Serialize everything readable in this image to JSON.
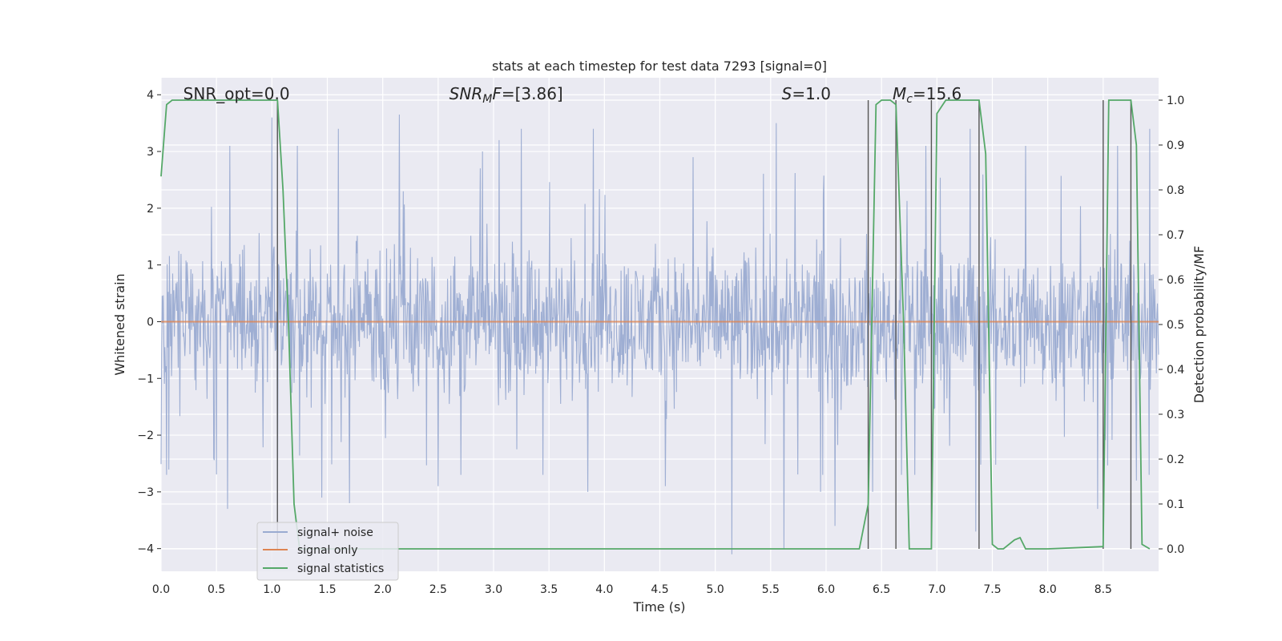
{
  "chart_data": {
    "type": "line",
    "title": "stats at each timestep for test data 7293 [signal=0]",
    "xlabel": "Time (s)",
    "ylabel_left": "Whitened strain",
    "ylabel_right": "Detection probability/MF",
    "xlim": [
      0.0,
      9.0
    ],
    "ylim_left": [
      -4.4,
      4.3
    ],
    "ylim_right": [
      -0.05,
      1.05
    ],
    "x_ticks": [
      "0.0",
      "0.5",
      "1.0",
      "1.5",
      "2.0",
      "2.5",
      "3.0",
      "3.5",
      "4.0",
      "4.5",
      "5.0",
      "5.5",
      "6.0",
      "6.5",
      "7.0",
      "7.5",
      "8.0",
      "8.5"
    ],
    "x_tick_values": [
      0.0,
      0.5,
      1.0,
      1.5,
      2.0,
      2.5,
      3.0,
      3.5,
      4.0,
      4.5,
      5.0,
      5.5,
      6.0,
      6.5,
      7.0,
      7.5,
      8.0,
      8.5
    ],
    "y_ticks_left": [
      "−4",
      "−3",
      "−2",
      "−1",
      "0",
      "1",
      "2",
      "3",
      "4"
    ],
    "y_tick_values_left": [
      -4,
      -3,
      -2,
      -1,
      0,
      1,
      2,
      3,
      4
    ],
    "y_ticks_right": [
      "0.0",
      "0.1",
      "0.2",
      "0.3",
      "0.4",
      "0.5",
      "0.6",
      "0.7",
      "0.8",
      "0.9",
      "1.0"
    ],
    "y_tick_values_right": [
      0.0,
      0.1,
      0.2,
      0.3,
      0.4,
      0.5,
      0.6,
      0.7,
      0.8,
      0.9,
      1.0
    ],
    "annotations": [
      {
        "text": "SNR_opt=0.0",
        "x": 0.2
      },
      {
        "text": "SNR",
        "sub": "M",
        "suffix": "F=[3.86]",
        "x": 2.6,
        "italic": true
      },
      {
        "text": "S",
        "suffix": "=1.0",
        "x": 5.6,
        "italic": true
      },
      {
        "text": "M",
        "sub": "c",
        "suffix": "=15.6",
        "x": 6.6,
        "italic": true
      }
    ],
    "vertical_lines_x": [
      1.05,
      6.38,
      6.63,
      6.95,
      7.38,
      8.5,
      8.75
    ],
    "series": [
      {
        "name": "signal+ noise",
        "color": "#9aabd1",
        "axis": "left",
        "envelope_note": "dense noise trace roughly within -2 and 2",
        "upper_spikes": [
          [
            0.62,
            3.1
          ],
          [
            1.0,
            3.6
          ],
          [
            1.23,
            3.1
          ],
          [
            1.6,
            3.4
          ],
          [
            2.15,
            3.65
          ],
          [
            2.9,
            3.0
          ],
          [
            3.05,
            3.2
          ],
          [
            3.25,
            3.4
          ],
          [
            3.9,
            3.4
          ],
          [
            4.8,
            2.9
          ],
          [
            5.55,
            3.5
          ],
          [
            6.08,
            3.9
          ],
          [
            6.9,
            3.1
          ],
          [
            7.3,
            3.4
          ],
          [
            7.8,
            3.1
          ],
          [
            8.63,
            3.1
          ],
          [
            8.92,
            3.4
          ]
        ],
        "lower_spikes": [
          [
            0.05,
            -2.7
          ],
          [
            0.6,
            -3.3
          ],
          [
            1.05,
            -3.2
          ],
          [
            1.45,
            -3.1
          ],
          [
            1.7,
            -3.2
          ],
          [
            2.5,
            -2.9
          ],
          [
            3.85,
            -3.0
          ],
          [
            4.55,
            -2.9
          ],
          [
            5.15,
            -4.1
          ],
          [
            5.62,
            -4.0
          ],
          [
            5.95,
            -3.0
          ],
          [
            6.08,
            -3.6
          ],
          [
            6.42,
            -3.0
          ],
          [
            7.35,
            -3.7
          ],
          [
            8.45,
            -3.3
          ],
          [
            8.8,
            -2.8
          ]
        ]
      },
      {
        "name": "signal only",
        "color": "#dd8452",
        "axis": "left",
        "x": [
          0.0,
          9.0
        ],
        "y": [
          0.0,
          0.0
        ]
      },
      {
        "name": "signal statistics",
        "color": "#55a868",
        "axis": "right",
        "x": [
          0.0,
          0.05,
          0.1,
          0.2,
          1.0,
          1.05,
          1.1,
          1.15,
          1.2,
          1.25,
          6.3,
          6.38,
          6.45,
          6.5,
          6.58,
          6.63,
          6.7,
          6.75,
          6.95,
          7.0,
          7.08,
          7.1,
          7.38,
          7.44,
          7.5,
          7.55,
          7.6,
          7.7,
          7.75,
          7.8,
          8.0,
          8.5,
          8.55,
          8.75,
          8.8,
          8.85,
          8.92
        ],
        "y": [
          0.83,
          0.99,
          1.0,
          1.0,
          1.0,
          1.0,
          0.8,
          0.5,
          0.1,
          0.0,
          0.0,
          0.1,
          0.99,
          1.0,
          1.0,
          0.99,
          0.5,
          0.0,
          0.0,
          0.97,
          1.0,
          1.0,
          1.0,
          0.88,
          0.01,
          0.0,
          0.0,
          0.02,
          0.025,
          0.0,
          0.0,
          0.005,
          1.0,
          1.0,
          0.9,
          0.01,
          0.0
        ]
      }
    ],
    "legend": {
      "position": "lower-left"
    },
    "grid": true,
    "colors": {
      "axes_bg": "#eaeaf2",
      "grid": "#ffffff",
      "vline": "#555555"
    }
  }
}
